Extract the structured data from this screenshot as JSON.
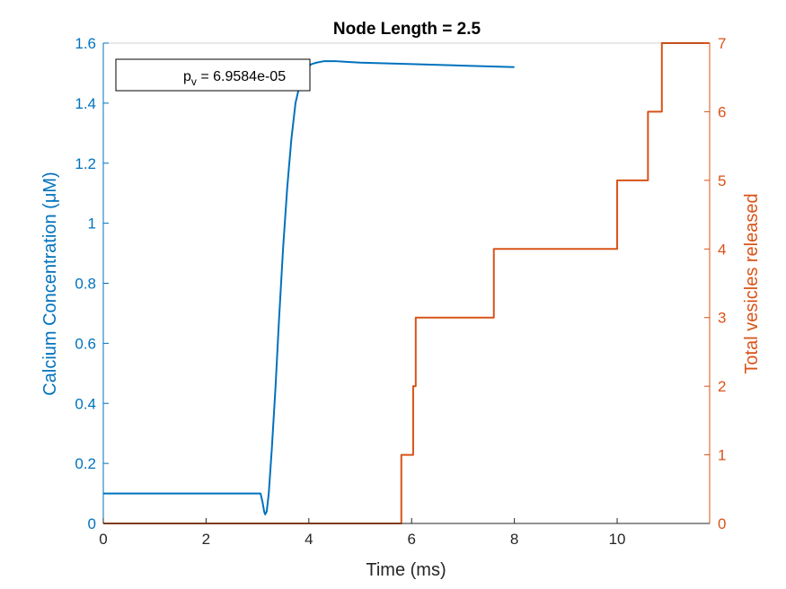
{
  "chart_data": {
    "type": "line",
    "title": "Node Length = 2.5",
    "xlabel": "Time (ms)",
    "ylabel_left": "Calcium Concentration (μM)",
    "ylabel_right": "Total vesicles released",
    "xlim": [
      0,
      11.8
    ],
    "ylim_left": [
      0,
      1.6
    ],
    "ylim_right": [
      0,
      7
    ],
    "xticks": [
      0,
      2,
      4,
      6,
      8,
      10
    ],
    "xtick_labels": [
      "0",
      "2",
      "4",
      "6",
      "8",
      "10"
    ],
    "yticks_left": [
      0,
      0.2,
      0.4,
      0.6,
      0.8,
      1,
      1.2,
      1.4,
      1.6
    ],
    "ytick_labels_left": [
      "0",
      "0.2",
      "0.4",
      "0.6",
      "0.8",
      "1",
      "1.2",
      "1.4",
      "1.6"
    ],
    "yticks_right": [
      0,
      1,
      2,
      3,
      4,
      5,
      6,
      7
    ],
    "ytick_labels_right": [
      "0",
      "1",
      "2",
      "3",
      "4",
      "5",
      "6",
      "7"
    ],
    "grid": false,
    "colors": {
      "calcium": "#0072BD",
      "vesicles": "#D95319",
      "axes": "#262626"
    },
    "annotation": {
      "symbol": "p",
      "subscript": "v",
      "text": " = 6.9584e-05"
    },
    "series": [
      {
        "axis": "left",
        "style": "line",
        "x": [
          0,
          3.0,
          3.06,
          3.1,
          3.13,
          3.15,
          3.18,
          3.22,
          3.28,
          3.35,
          3.42,
          3.5,
          3.58,
          3.66,
          3.74,
          3.82,
          3.9,
          3.98,
          4.05,
          4.15,
          4.3,
          4.5,
          5.0,
          6.0,
          7.0,
          8.0
        ],
        "y": [
          0.1,
          0.1,
          0.1,
          0.07,
          0.04,
          0.03,
          0.04,
          0.1,
          0.25,
          0.45,
          0.68,
          0.92,
          1.12,
          1.28,
          1.4,
          1.46,
          1.5,
          1.52,
          1.53,
          1.535,
          1.54,
          1.54,
          1.535,
          1.53,
          1.525,
          1.52
        ]
      },
      {
        "axis": "right",
        "style": "step",
        "x": [
          0,
          5.8,
          6.03,
          6.05,
          6.08,
          7.6,
          10.0,
          10.6,
          10.87,
          11.8
        ],
        "y": [
          0,
          1,
          2,
          2,
          3,
          4,
          5,
          6,
          7,
          7
        ]
      }
    ]
  }
}
